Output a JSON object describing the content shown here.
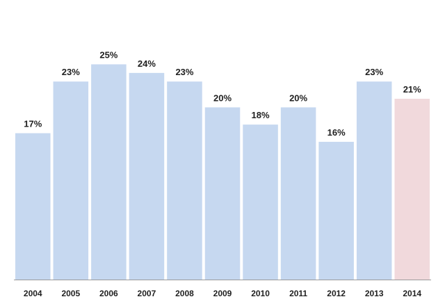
{
  "chart_data": {
    "type": "bar",
    "title": "",
    "xlabel": "",
    "ylabel": "",
    "categories": [
      "2004",
      "2005",
      "2006",
      "2007",
      "2008",
      "2009",
      "2010",
      "2011",
      "2012",
      "2013",
      "2014"
    ],
    "values": [
      17,
      23,
      25,
      24,
      23,
      20,
      18,
      20,
      16,
      23,
      21
    ],
    "value_labels": [
      "17%",
      "23%",
      "25%",
      "24%",
      "23%",
      "20%",
      "18%",
      "20%",
      "16%",
      "23%",
      "21%"
    ],
    "unit": "%",
    "ylim": [
      0,
      31.5
    ],
    "grid": false,
    "legend": "none",
    "colors": {
      "default": "#c6d8f0",
      "highlight": "#f1d9dc",
      "axis": "#9a9a9a",
      "text": "#1f1f1f"
    },
    "highlight_index": 10
  }
}
